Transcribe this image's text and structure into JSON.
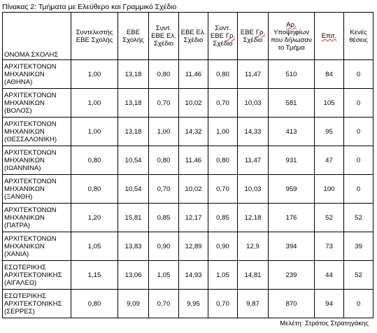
{
  "caption": "Πίνακας 2: Τμήματα με Ελεύθερο και Γραμμικό Σχέδιο",
  "headers": {
    "school": "ΟΝΟΜΑ ΣΧΟΛΗΣ",
    "coef_pre": "Συντελεστής",
    "coef_post": "ΕΒΕ Σχολής",
    "ebe_school": "ΕΒΕ Σχολής",
    "coef_free_a": "Συντ.",
    "coef_free_b": "ΕΒΕ Ελ.",
    "coef_free_c": "Σχέδιο",
    "ebe_free": "ΕΒΕ Ελ. Σχέδιο",
    "coef_lin_pre": "Συντ. ΕΒΕ ",
    "coef_lin_mark": "Γρ.",
    "coef_lin_post": " Σχέδιο",
    "ebe_lin_pre": "ΕΒΕ ",
    "ebe_lin_mark": "Γρ.",
    "ebe_lin_post": " Σχέδιο",
    "cand_mark": "Αρ.",
    "cand_post": " Υποψηφίων που δήλωσαν το Τμήμα",
    "places": "Επιτ.",
    "vacant": "Κενές θέσεις"
  },
  "rows": [
    {
      "name": "ΑΡΧΙΤΕΚΤΟΝΩΝ ΜΗΧΑΝΙΚΩΝ (ΑΘΗΝΑ)",
      "coef": "1,00",
      "ebe": "13,18",
      "cfree": "0,80",
      "efree": "11,46",
      "clin": "0,80",
      "elin": "11,47",
      "cand": "510",
      "places": "84",
      "vacant": "0"
    },
    {
      "name": "ΑΡΧΙΤΕΚΤΟΝΩΝ ΜΗΧΑΝΙΚΩΝ (ΒΟΛΟΣ)",
      "coef": "1,00",
      "ebe": "13,18",
      "cfree": "0,70",
      "efree": "10,02",
      "clin": "0,70",
      "elin": "10,03",
      "cand": "581",
      "places": "105",
      "vacant": "0"
    },
    {
      "name": "ΑΡΧΙΤΕΚΤΟΝΩΝ ΜΗΧΑΝΙΚΩΝ (ΘΕΣΣΑΛΟΝΙΚΗ)",
      "coef": "1,00",
      "ebe": "13,18",
      "cfree": "1,00",
      "efree": "14,32",
      "clin": "1,00",
      "elin": "14,33",
      "cand": "413",
      "places": "95",
      "vacant": "0"
    },
    {
      "name": "ΑΡΧΙΤΕΚΤΟΝΩΝ ΜΗΧΑΝΙΚΩΝ (ΙΩΑΝΝΙΝΑ)",
      "coef": "0,80",
      "ebe": "10,54",
      "cfree": "0,80",
      "efree": "11,46",
      "clin": "0,80",
      "elin": "11,47",
      "cand": "931",
      "places": "47",
      "vacant": "0"
    },
    {
      "name": "ΑΡΧΙΤΕΚΤΟΝΩΝ ΜΗΧΑΝΙΚΩΝ (ΞΑΝΘΗ)",
      "coef": "0,80",
      "ebe": "10,54",
      "cfree": "0,70",
      "efree": "10,02",
      "clin": "0,70",
      "elin": "10,03",
      "cand": "959",
      "places": "100",
      "vacant": "0"
    },
    {
      "name": "ΑΡΧΙΤΕΚΤΟΝΩΝ ΜΗΧΑΝΙΚΩΝ (ΠΑΤΡΑ)",
      "coef": "1,20",
      "ebe": "15,81",
      "cfree": "0,85",
      "efree": "12,17",
      "clin": "0,85",
      "elin": "12,18",
      "cand": "176",
      "places": "52",
      "vacant": "52"
    },
    {
      "name": "ΑΡΧΙΤΕΚΤΟΝΩΝ ΜΗΧΑΝΙΚΩΝ (ΧΑΝΙΑ)",
      "coef": "1,05",
      "ebe": "13,83",
      "cfree": "0,90",
      "efree": "12,89",
      "clin": "0,90",
      "elin": "12,9",
      "cand": "394",
      "places": "73",
      "vacant": "39"
    },
    {
      "name": "ΕΣΩΤΕΡΙΚΗΣ ΑΡΧΙΤΕΚΤΟΝΙΚΗΣ (ΑΙΓΑΛΕΩ)",
      "coef": "1,15",
      "ebe": "13,06",
      "cfree": "1,05",
      "efree": "14,93",
      "clin": "1,05",
      "elin": "14,81",
      "cand": "239",
      "places": "44",
      "vacant": "52"
    },
    {
      "name": "ΕΣΩΤΕΡΙΚΗΣ ΑΡΧΙΤΕΚΤΟΝΙΚΗΣ (ΣΕΡΡΕΣ)",
      "coef": "0,80",
      "ebe": "9,09",
      "cfree": "0,70",
      "efree": "9,95",
      "clin": "0,70",
      "elin": "9,87",
      "cand": "870",
      "places": "94",
      "vacant": "0"
    }
  ],
  "author": "Μελέτη: Στράτος Στρατηγάκης",
  "colors": {
    "grid": "#000000",
    "spellcheck": "#e03030"
  }
}
